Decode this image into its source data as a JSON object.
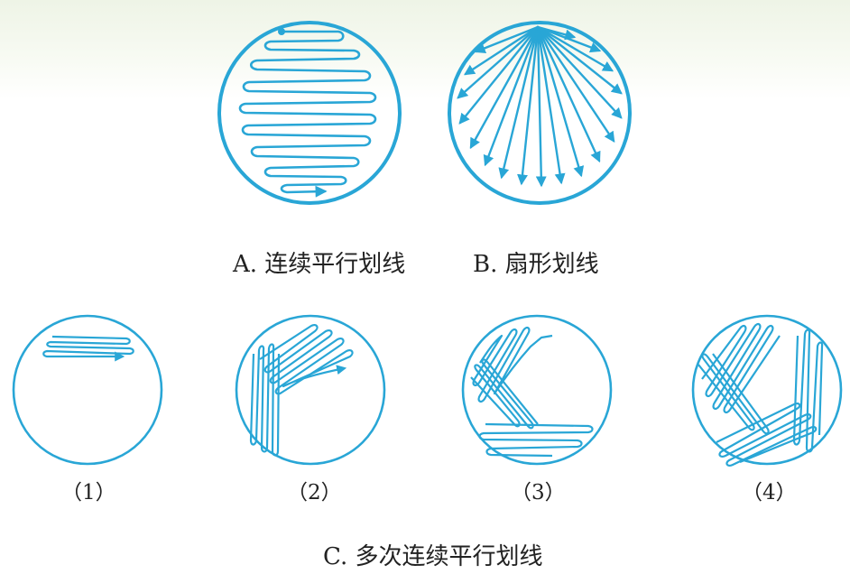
{
  "line_color": "#29a6d6",
  "captions": {
    "a": "A. 连续平行划线",
    "b": "B. 扇形划线",
    "c": "C. 多次连续平行划线"
  },
  "steps": [
    "（1）",
    "（2）",
    "（3）",
    "（4）"
  ]
}
